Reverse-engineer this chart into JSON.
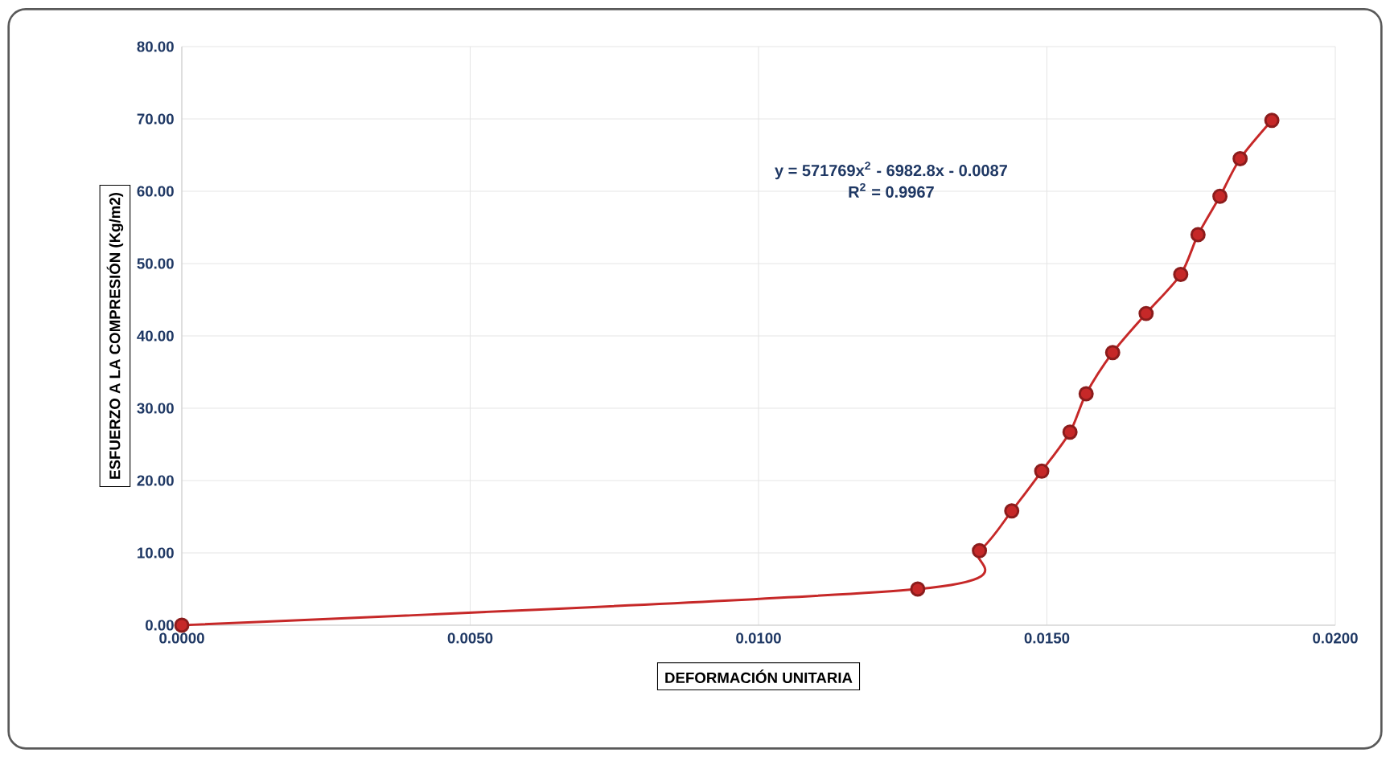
{
  "chart_data": {
    "type": "line",
    "xlabel": "DEFORMACIÓN UNITARIA",
    "ylabel": "ESFUERZO A LA COMPRESIÓN (Kg/m2)",
    "annotations": [
      "y = 571769x$^{2}$ - 6982.8x - 0.0087",
      "R$^{2}$ = 0.9967"
    ],
    "series": [
      {
        "color": "#c62828",
        "x": [
          0.0,
          0.01276,
          0.01383,
          0.01439,
          0.01491,
          0.0154,
          0.01568,
          0.01614,
          0.01672,
          0.01732,
          0.01762,
          0.018,
          0.01835,
          0.0189
        ],
        "values": [
          0.0,
          5.0,
          10.3,
          15.8,
          21.3,
          26.7,
          32.0,
          37.7,
          43.1,
          48.5,
          54.0,
          59.3,
          64.5,
          69.8
        ]
      }
    ],
    "xlim": [
      0,
      0.02
    ],
    "ylim": [
      0,
      80
    ],
    "xticks": [
      {
        "value": 0,
        "label": "0.0000"
      },
      {
        "value": 0.005,
        "label": "0.0050"
      },
      {
        "value": 0.01,
        "label": "0.0100"
      },
      {
        "value": 0.015,
        "label": "0.0150"
      },
      {
        "value": 0.02,
        "label": "0.0200"
      }
    ],
    "yticks": [
      {
        "value": 0,
        "label": "0.00"
      },
      {
        "value": 10,
        "label": "10.00"
      },
      {
        "value": 20,
        "label": "20.00"
      },
      {
        "value": 30,
        "label": "30.00"
      },
      {
        "value": 40,
        "label": "40.00"
      },
      {
        "value": 50,
        "label": "50.00"
      },
      {
        "value": 60,
        "label": "60.00"
      },
      {
        "value": 70,
        "label": "70.00"
      },
      {
        "value": 80,
        "label": "80.00"
      }
    ],
    "grid": true,
    "marker": "circle",
    "line_style": "solid"
  }
}
